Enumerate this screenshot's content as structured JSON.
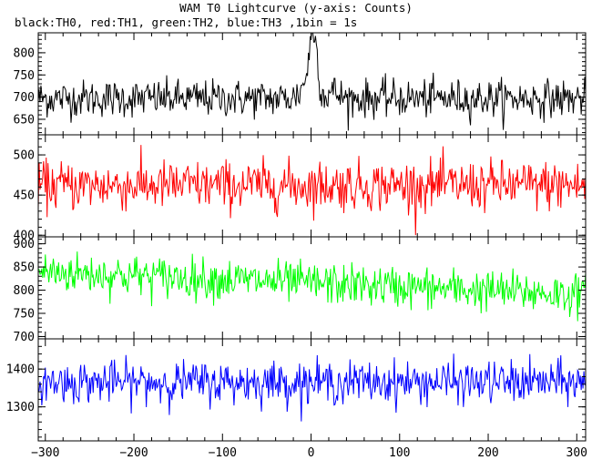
{
  "title": "WAM T0 Lightcurve (y-axis: Counts)",
  "subtitle": "black:TH0, red:TH1, green:TH2, blue:TH3 ,1bin = 1s",
  "chart_data": {
    "type": "line",
    "xlabel": "",
    "xlim": [
      -308,
      310
    ],
    "xticks": [
      -300,
      -200,
      -100,
      0,
      100,
      200,
      300
    ],
    "bin_seconds": 1,
    "panels": [
      {
        "series": "TH0",
        "color": "#000000",
        "ylabel": "",
        "ylim": [
          615,
          845
        ],
        "yticks": [
          650,
          700,
          750,
          800
        ],
        "baseline": 697,
        "noise_amplitude": 38,
        "features": [
          {
            "type": "peak",
            "center": 3,
            "height": 125,
            "width": 6
          },
          {
            "type": "peak",
            "center": -3,
            "height": 40,
            "width": 10
          },
          {
            "type": "peak",
            "center": 25,
            "height": 15,
            "width": 8
          }
        ]
      },
      {
        "series": "TH1",
        "color": "#ff0000",
        "ylabel": "",
        "ylim": [
          398,
          525
        ],
        "yticks": [
          400,
          450,
          500
        ],
        "baseline": 462,
        "noise_amplitude": 28,
        "features": []
      },
      {
        "series": "TH2",
        "color": "#00ff00",
        "ylabel": "",
        "ylim": [
          695,
          915
        ],
        "yticks": [
          700,
          750,
          800,
          850,
          900
        ],
        "baseline_start": 840,
        "baseline_end": 790,
        "noise_amplitude": 40,
        "features": []
      },
      {
        "series": "TH3",
        "color": "#0000ff",
        "ylabel": "",
        "ylim": [
          1210,
          1480
        ],
        "yticks": [
          1300,
          1400
        ],
        "baseline": 1365,
        "noise_amplitude": 50,
        "features": []
      }
    ]
  }
}
